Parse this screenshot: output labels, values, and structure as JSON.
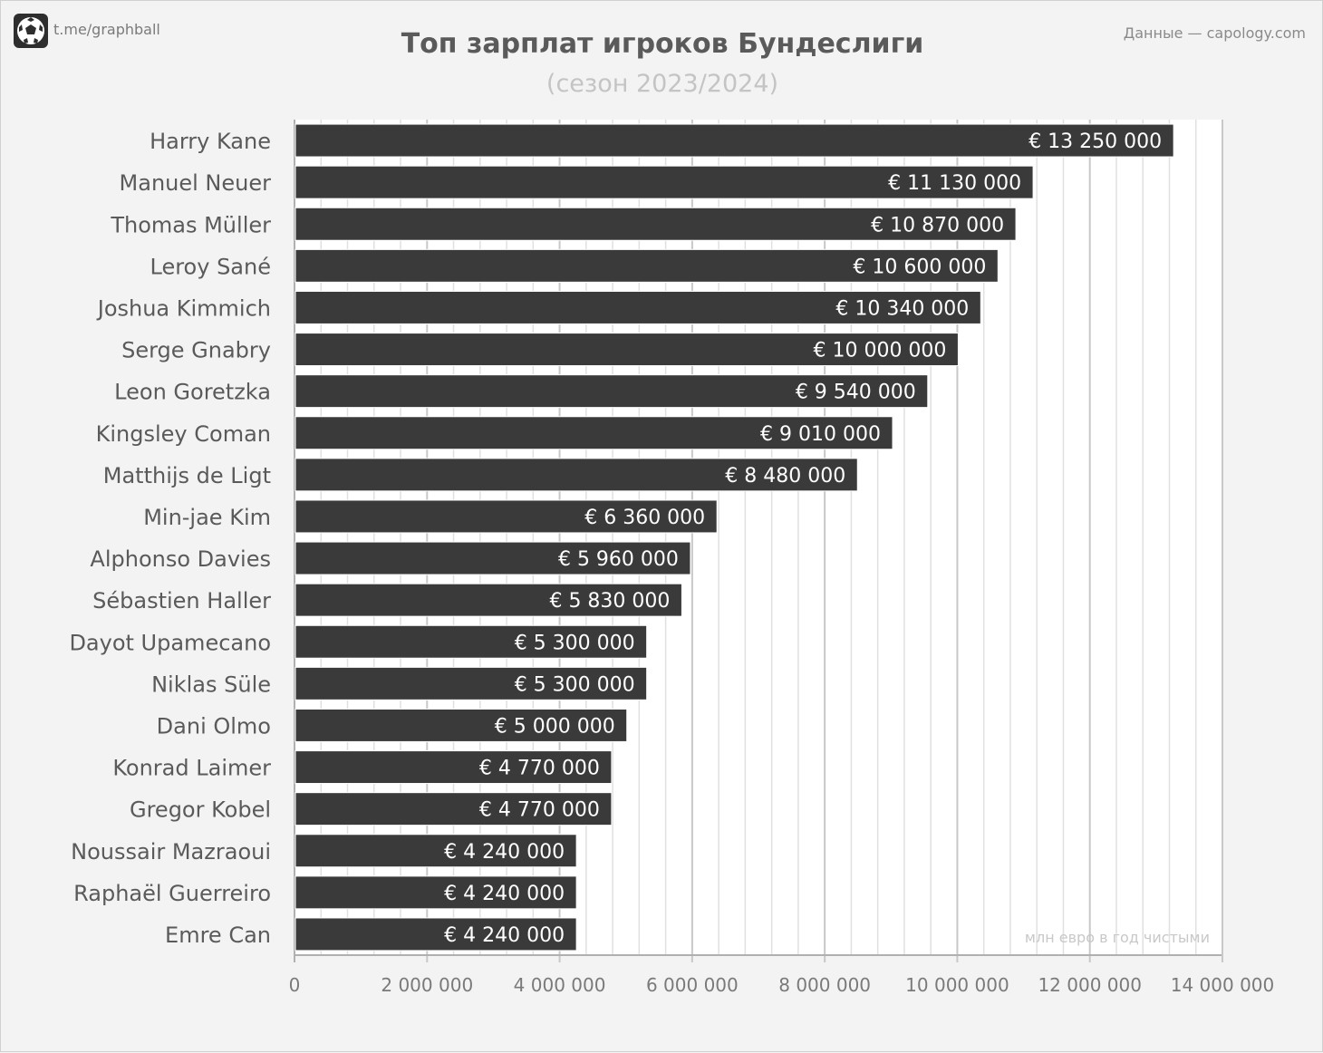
{
  "header": {
    "brand": "t.me/graphball",
    "source": "Данные — capology.com",
    "title": "Топ зарплат игроков Бундеслиги",
    "subtitle": "(сезон 2023/2024)"
  },
  "colors": {
    "bar": "#3a3a3a",
    "bar_label": "#ffffff",
    "grid_major": "#c8c8c8",
    "grid_minor": "#e0e0e0",
    "text": "#5a5a5a"
  },
  "chart_data": {
    "type": "bar",
    "orientation": "horizontal",
    "title": "Топ зарплат игроков Бундеслиги",
    "subtitle": "(сезон 2023/2024)",
    "unit_note": "млн евро в год чистыми",
    "categories": [
      "Harry Kane",
      "Manuel Neuer",
      "Thomas Müller",
      "Leroy Sané",
      "Joshua Kimmich",
      "Serge Gnabry",
      "Leon Goretzka",
      "Kingsley Coman",
      "Matthijs de Ligt",
      "Min-jae Kim",
      "Alphonso Davies",
      "Sébastien Haller",
      "Dayot Upamecano",
      "Niklas Süle",
      "Dani Olmo",
      "Konrad Laimer",
      "Gregor Kobel",
      "Noussair Mazraoui",
      "Raphaël Guerreiro",
      "Emre Can"
    ],
    "values": [
      13250000,
      11130000,
      10870000,
      10600000,
      10340000,
      10000000,
      9540000,
      9010000,
      8480000,
      6360000,
      5960000,
      5830000,
      5300000,
      5300000,
      5000000,
      4770000,
      4770000,
      4240000,
      4240000,
      4240000
    ],
    "data_labels": [
      "€ 13 250 000",
      "€ 11 130 000",
      "€ 10 870 000",
      "€ 10 600 000",
      "€ 10 340 000",
      "€ 10 000 000",
      "€ 9 540 000",
      "€ 9 010 000",
      "€ 8 480 000",
      "€ 6 360 000",
      "€ 5 960 000",
      "€ 5 830 000",
      "€ 5 300 000",
      "€ 5 300 000",
      "€ 5 000 000",
      "€ 4 770 000",
      "€ 4 770 000",
      "€ 4 240 000",
      "€ 4 240 000",
      "€ 4 240 000"
    ],
    "xlim": [
      0,
      14000000
    ],
    "xticks": [
      0,
      2000000,
      4000000,
      6000000,
      8000000,
      10000000,
      12000000,
      14000000
    ],
    "xtick_labels": [
      "0",
      "2 000 000",
      "4 000 000",
      "6 000 000",
      "8 000 000",
      "10 000 000",
      "12 000 000",
      "14 000 000"
    ],
    "minor_step": 400000,
    "grid": true,
    "legend": "none"
  }
}
